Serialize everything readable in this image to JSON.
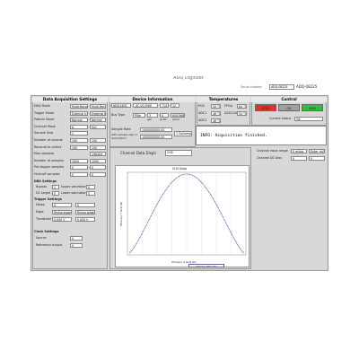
{
  "header": {
    "title": "ADQ Digitizer",
    "serial_label": "Serial number",
    "serial_select": "ADQ-08225",
    "serial_value": "ADQ-08225"
  },
  "acquisition": {
    "title": "Data Acquisition Settings",
    "rows": [
      [
        "DAQ Mode",
        "Multi-Record",
        "Multi-Record"
      ],
      [
        "Trigger Mode",
        "External trigger",
        "External trigger"
      ],
      [
        "Pattern Mode",
        "Normal",
        "Normal"
      ],
      [
        "Channel Mask",
        "A",
        "0x1"
      ],
      [
        "Sample Skip",
        "1",
        ""
      ],
      [
        "Number of records",
        "100",
        "100"
      ],
      [
        "Records to collect",
        "100",
        "100"
      ],
      [
        "Max samples",
        "",
        "196404"
      ],
      [
        "Number of samples",
        "1000",
        "1000"
      ],
      [
        "Pre-trigger samples",
        "0",
        "0"
      ],
      [
        "Hold-off samples",
        "0",
        "0"
      ]
    ],
    "dbs_title": "DBS Settings",
    "dbs_rows": [
      [
        "Bypass",
        "1",
        "Upper saturation",
        "0"
      ],
      [
        "DC target",
        "0",
        "Lower saturation",
        "0"
      ]
    ],
    "trigger_title": "Trigger Settings",
    "trigger_rows": [
      [
        "Delay",
        "0",
        "0"
      ],
      [
        "Edge",
        "Rising edge",
        "Rising edge"
      ],
      [
        "Threshold",
        "0.000 V",
        "0.000 V"
      ]
    ],
    "clock_title": "Clock Settings",
    "clock_rows": [
      [
        "Source",
        "0",
        ""
      ],
      [
        "Reference output",
        "0",
        ""
      ]
    ]
  },
  "device": {
    "title": "Device Information",
    "row1": [
      "ADQ14DC",
      "-4C-VG-PXIE",
      "714",
      "12"
    ],
    "bus_label": "Bus Type",
    "row2": [
      "PXIe",
      "3",
      "4",
      "8/00368"
    ],
    "sub": [
      "gen",
      "width",
      "serial"
    ],
    "rate_label": "Sample Rate",
    "rate": "1000000000.00",
    "skip_label": "with sample skip or decimation",
    "skip": "1000000000.00",
    "unit": "1 Gs/sample"
  },
  "info": "INFO: Acquisition finished.",
  "temperatures": {
    "title": "Temperatures",
    "items": [
      [
        "PCB",
        "50 °C"
      ],
      [
        "FPGA",
        "64 °C"
      ],
      [
        "ADC1",
        "46 °C"
      ],
      [
        "DCDC2A",
        "54 °C"
      ],
      [
        "ADC2",
        "46 °C"
      ]
    ]
  },
  "control": {
    "title": "Control",
    "buttons": [
      "STOP",
      "OK",
      "RUN"
    ],
    "status_label": "Current status",
    "status": "OK"
  },
  "display": {
    "title": "Channel Data Display",
    "channel": "CH0",
    "range_label": "Channel input range",
    "range": "0 mVpp",
    "range_hint": "Enter mVpp",
    "bias_label": "Channel DC bias",
    "bias": "0",
    "bias2": "0"
  },
  "plot": {
    "title": "CH0 Data",
    "xlabel": "Primary X Axis (R)",
    "ylabel": "Primary Y Axis (R)",
    "legend": "ADQ14 CH0 data"
  }
}
